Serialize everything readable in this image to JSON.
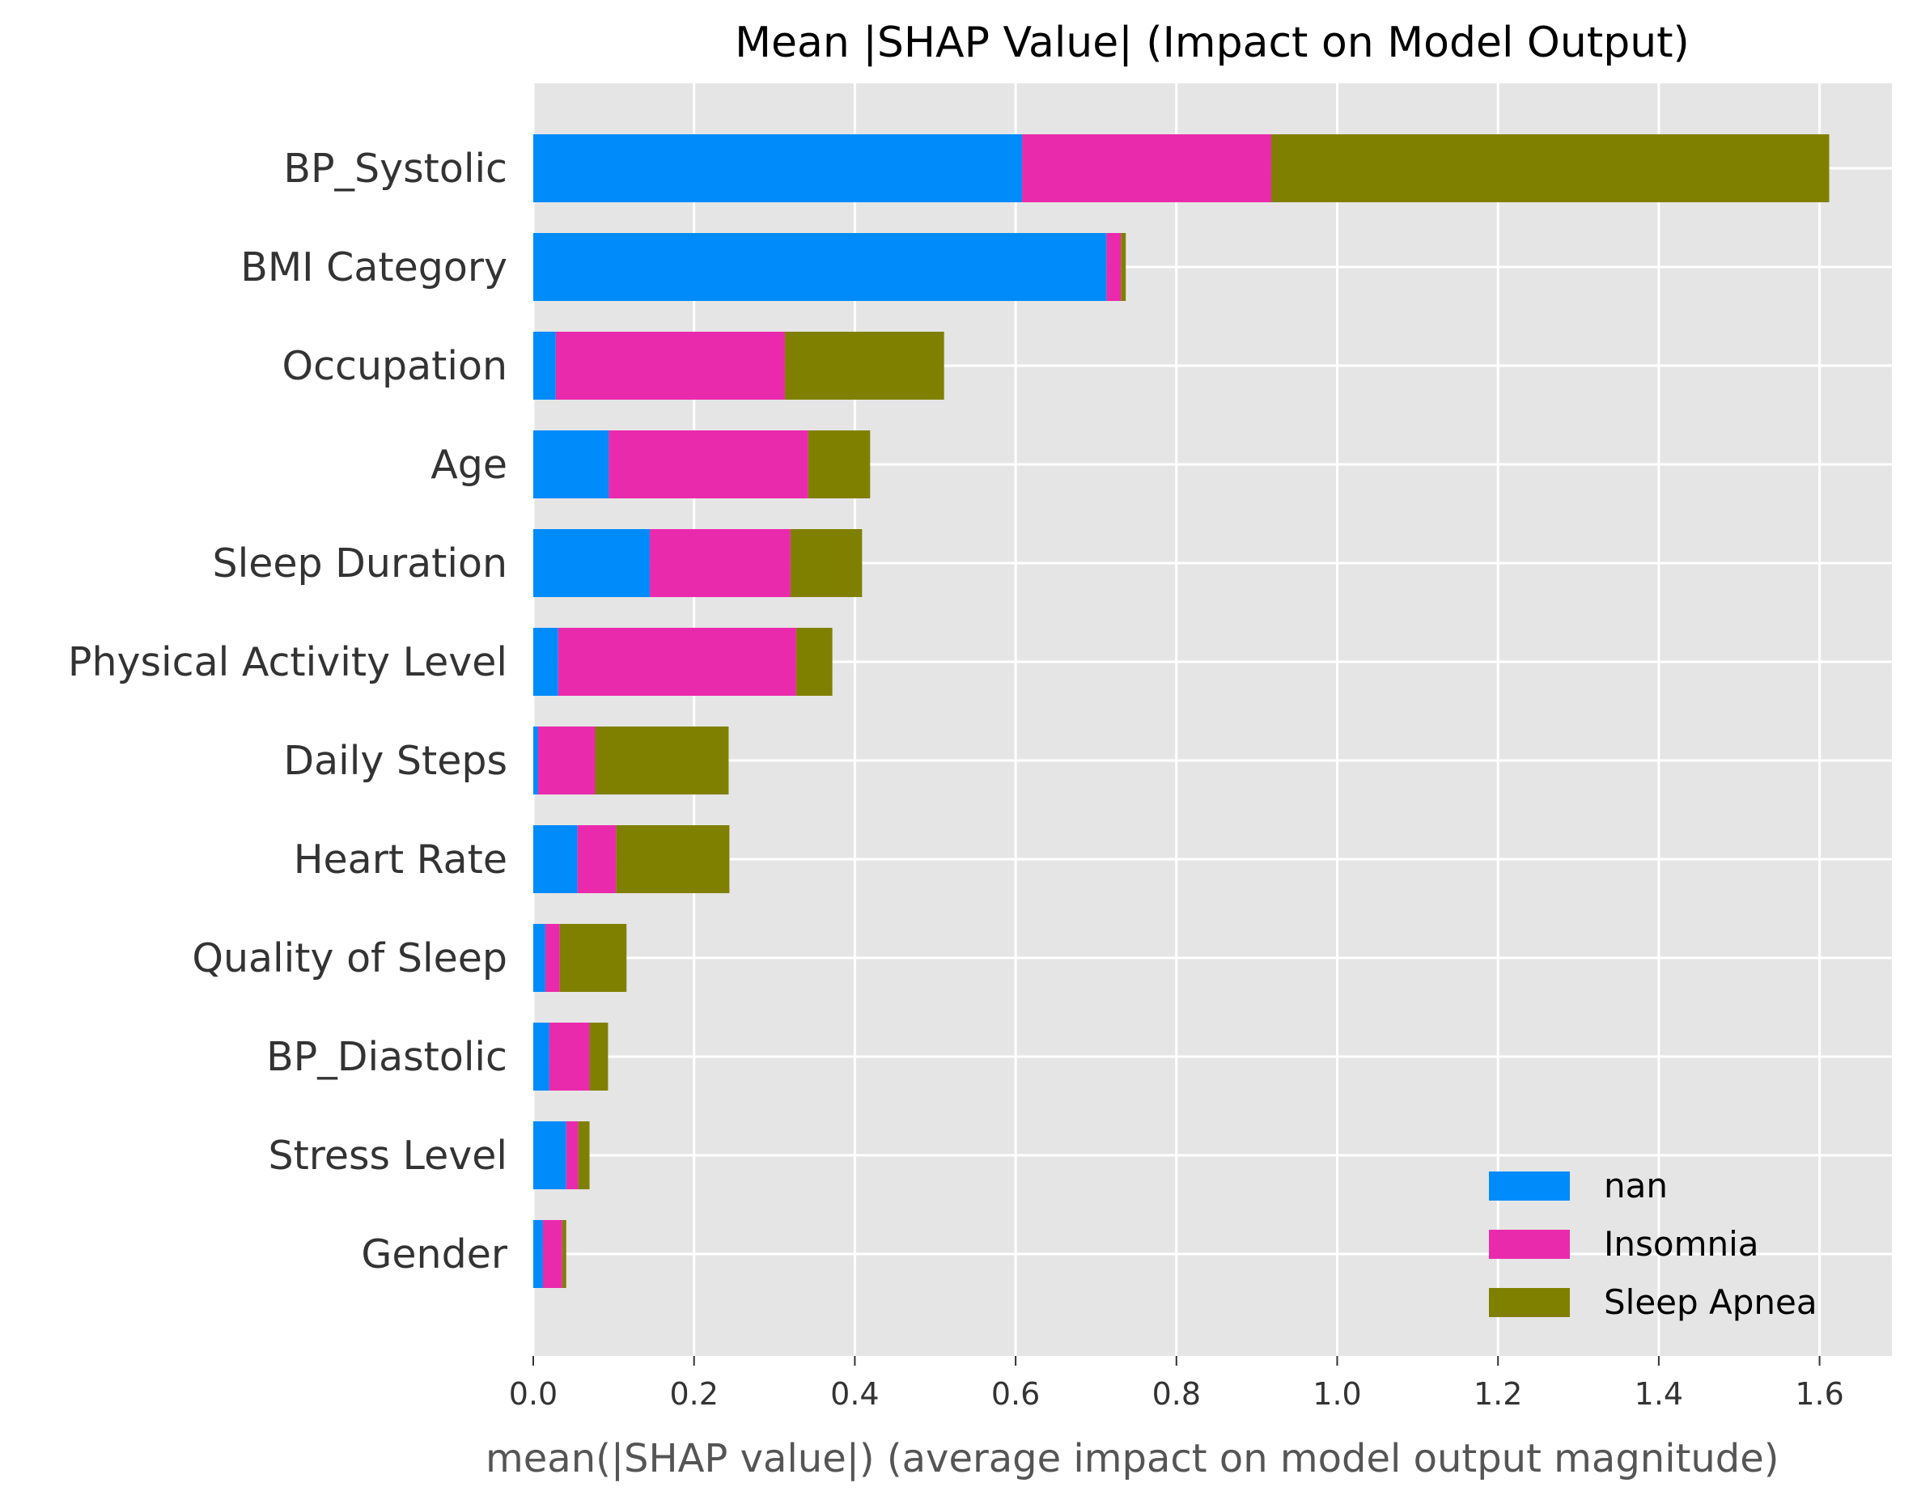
{
  "chart_data": {
    "type": "bar",
    "orientation": "horizontal",
    "stacked": true,
    "title": "Mean |SHAP Value| (Impact on Model Output)",
    "xlabel": "mean(|SHAP value|) (average impact on model output magnitude)",
    "ylabel": "",
    "xlim": [
      0,
      1.69
    ],
    "xticks": [
      "0.0",
      "0.2",
      "0.4",
      "0.6",
      "0.8",
      "1.0",
      "1.2",
      "1.4",
      "1.6"
    ],
    "categories": [
      "BP_Systolic",
      "BMI Category",
      "Occupation",
      "Age",
      "Sleep Duration",
      "Physical Activity Level",
      "Daily Steps",
      "Heart Rate",
      "Quality of Sleep",
      "BP_Diastolic",
      "Stress Level",
      "Gender"
    ],
    "series": [
      {
        "name": "nan",
        "color": "#008bfb",
        "values": [
          0.608,
          0.713,
          0.028,
          0.094,
          0.145,
          0.031,
          0.006,
          0.055,
          0.015,
          0.02,
          0.041,
          0.012
        ]
      },
      {
        "name": "Insomnia",
        "color": "#ea2aac",
        "values": [
          0.31,
          0.018,
          0.285,
          0.248,
          0.175,
          0.296,
          0.071,
          0.048,
          0.018,
          0.05,
          0.015,
          0.024
        ]
      },
      {
        "name": "Sleep Apnea",
        "color": "#808000",
        "values": [
          0.694,
          0.006,
          0.198,
          0.077,
          0.089,
          0.045,
          0.166,
          0.141,
          0.083,
          0.023,
          0.014,
          0.005
        ]
      }
    ],
    "grid": true,
    "background": "#e5e5e5",
    "legend_position": "lower-right"
  }
}
